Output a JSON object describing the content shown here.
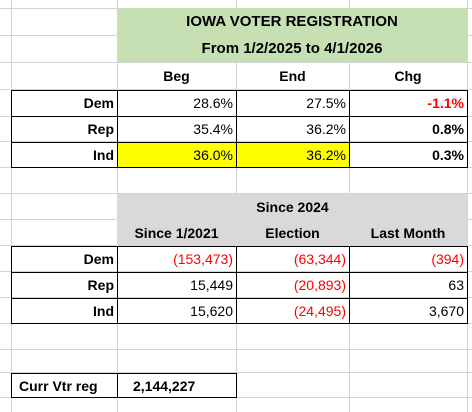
{
  "title": {
    "line1": "IOWA VOTER REGISTRATION",
    "line2": "From  1/2/2025 to 4/1/2026"
  },
  "table1": {
    "headers": [
      "Beg",
      "End",
      "Chg"
    ],
    "rows": [
      {
        "label": "Dem",
        "beg": "28.6%",
        "end": "27.5%",
        "chg": "-1.1%"
      },
      {
        "label": "Rep",
        "beg": "35.4%",
        "end": "36.2%",
        "chg": "0.8%"
      },
      {
        "label": "Ind",
        "beg": "36.0%",
        "end": "36.2%",
        "chg": "0.3%"
      }
    ]
  },
  "table2": {
    "headers": {
      "since2021": "Since 1/2021",
      "since2024_line1": "Since 2024",
      "since2024_line2": "Election",
      "last_month": "Last Month"
    },
    "rows": [
      {
        "label": "Dem",
        "since2021": "(153,473)",
        "since2024": "(63,344)",
        "last_month": "(394)"
      },
      {
        "label": "Rep",
        "since2021": "15,449",
        "since2024": "(20,893)",
        "last_month": "63"
      },
      {
        "label": "Ind",
        "since2021": "15,620",
        "since2024": "(24,495)",
        "last_month": "3,670"
      }
    ]
  },
  "current": {
    "label": "Curr Vtr reg",
    "value": "2,144,227"
  },
  "colors": {
    "title_fill": "#c6e0b4",
    "header_fill": "#d9d9d9",
    "highlight": "#ffff00",
    "negative": "#ff0000"
  }
}
